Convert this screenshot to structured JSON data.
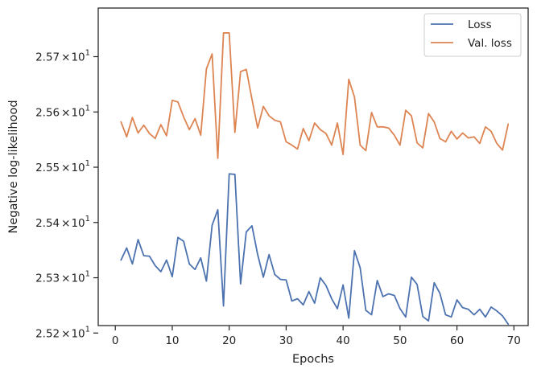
{
  "chart_data": {
    "type": "line",
    "title": "",
    "xlabel": "Epochs",
    "ylabel": "Negative log-likelihood",
    "xlim": [
      -3,
      72.5
    ],
    "ylim": [
      25.2135,
      25.788
    ],
    "grid": false,
    "legend_position": "top-right",
    "x_ticks": [
      {
        "value": 0,
        "label": "0"
      },
      {
        "value": 10,
        "label": "10"
      },
      {
        "value": 20,
        "label": "20"
      },
      {
        "value": 30,
        "label": "30"
      },
      {
        "value": 40,
        "label": "40"
      },
      {
        "value": 50,
        "label": "50"
      },
      {
        "value": 60,
        "label": "60"
      },
      {
        "value": 70,
        "label": "70"
      }
    ],
    "y_ticks": [
      {
        "value": 25.2,
        "mantissa": "2.52",
        "times": "×",
        "base": "10",
        "exp": "1"
      },
      {
        "value": 25.3,
        "mantissa": "2.53",
        "times": "×",
        "base": "10",
        "exp": "1"
      },
      {
        "value": 25.4,
        "mantissa": "2.54",
        "times": "×",
        "base": "10",
        "exp": "1"
      },
      {
        "value": 25.5,
        "mantissa": "2.55",
        "times": "×",
        "base": "10",
        "exp": "1"
      },
      {
        "value": 25.6,
        "mantissa": "2.56",
        "times": "×",
        "base": "10",
        "exp": "1"
      },
      {
        "value": 25.7,
        "mantissa": "2.57",
        "times": "×",
        "base": "10",
        "exp": "1"
      }
    ],
    "x": [
      1,
      2,
      3,
      4,
      5,
      6,
      7,
      8,
      9,
      10,
      11,
      12,
      13,
      14,
      15,
      16,
      17,
      18,
      19,
      20,
      21,
      22,
      23,
      24,
      25,
      26,
      27,
      28,
      29,
      30,
      31,
      32,
      33,
      34,
      35,
      36,
      37,
      38,
      39,
      40,
      41,
      42,
      43,
      44,
      45,
      46,
      47,
      48,
      49,
      50,
      51,
      52,
      53,
      54,
      55,
      56,
      57,
      58,
      59,
      60,
      61,
      62,
      63,
      64,
      65,
      66,
      67,
      68,
      69
    ],
    "series": [
      {
        "name": "Loss",
        "color": "#4c72b0",
        "values": [
          25.332,
          25.354,
          25.325,
          25.369,
          25.34,
          25.339,
          25.322,
          25.311,
          25.332,
          25.302,
          25.373,
          25.366,
          25.325,
          25.315,
          25.336,
          25.294,
          25.395,
          25.423,
          25.249,
          25.488,
          25.487,
          25.289,
          25.383,
          25.394,
          25.342,
          25.301,
          25.342,
          25.306,
          25.297,
          25.296,
          25.258,
          25.262,
          25.251,
          25.275,
          25.254,
          25.3,
          25.286,
          25.262,
          25.244,
          25.287,
          25.227,
          25.349,
          25.318,
          25.241,
          25.233,
          25.295,
          25.266,
          25.271,
          25.268,
          25.244,
          25.229,
          25.301,
          25.288,
          25.23,
          25.222,
          25.291,
          25.272,
          25.233,
          25.229,
          25.26,
          25.246,
          25.243,
          25.233,
          25.243,
          25.229,
          25.247,
          25.24,
          25.231,
          25.216
        ]
      },
      {
        "name": "Val. loss",
        "color": "#dd8452",
        "values": [
          25.582,
          25.555,
          25.59,
          25.562,
          25.576,
          25.561,
          25.552,
          25.577,
          25.557,
          25.621,
          25.618,
          25.591,
          25.568,
          25.588,
          25.558,
          25.678,
          25.705,
          25.516,
          25.743,
          25.743,
          25.563,
          25.673,
          25.677,
          25.623,
          25.571,
          25.61,
          25.593,
          25.585,
          25.582,
          25.546,
          25.54,
          25.533,
          25.57,
          25.548,
          25.58,
          25.568,
          25.561,
          25.54,
          25.58,
          25.523,
          25.659,
          25.627,
          25.54,
          25.53,
          25.599,
          25.573,
          25.573,
          25.571,
          25.558,
          25.54,
          25.603,
          25.593,
          25.544,
          25.535,
          25.597,
          25.582,
          25.552,
          25.546,
          25.565,
          25.551,
          25.562,
          25.553,
          25.555,
          25.543,
          25.573,
          25.565,
          25.543,
          25.531,
          25.578
        ]
      }
    ]
  }
}
